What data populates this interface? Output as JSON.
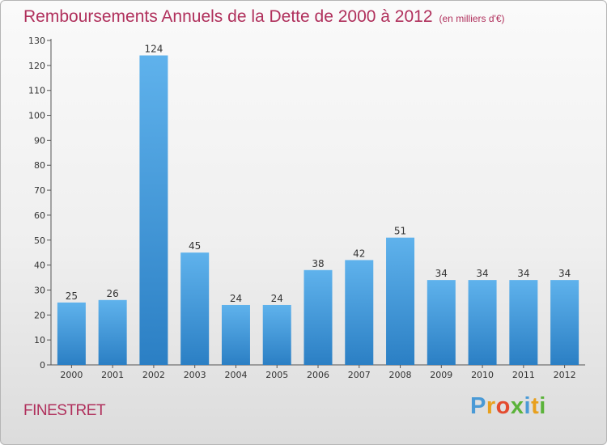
{
  "chart_data": {
    "type": "bar",
    "title": "Remboursements Annuels de la Dette de 2000 à 2012",
    "subtitle": "(en milliers d'€)",
    "categories": [
      "2000",
      "2001",
      "2002",
      "2003",
      "2004",
      "2005",
      "2006",
      "2007",
      "2008",
      "2009",
      "2010",
      "2011",
      "2012"
    ],
    "values": [
      25,
      26,
      124,
      45,
      24,
      24,
      38,
      42,
      51,
      34,
      34,
      34,
      34
    ],
    "ylim": [
      0,
      130
    ],
    "yticks": [
      0,
      10,
      20,
      30,
      40,
      50,
      60,
      70,
      80,
      90,
      100,
      110,
      120,
      130
    ],
    "grid": false,
    "bar_color": "#3a8fd0"
  },
  "commune": "FINESTRET",
  "brand": "Proxiti"
}
